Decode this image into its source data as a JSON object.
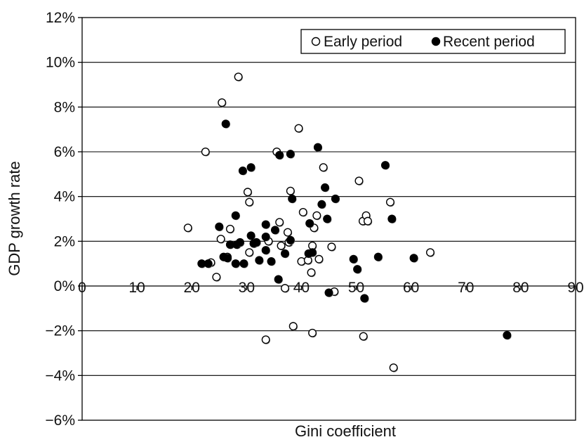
{
  "chart_data": {
    "type": "scatter",
    "title": "",
    "xlabel": "Gini coefficient",
    "ylabel": "GDP growth rate",
    "xlim": [
      0,
      90
    ],
    "ylim": [
      -6,
      12
    ],
    "x_ticks": [
      "0",
      "10",
      "20",
      "30",
      "40",
      "50",
      "60",
      "70",
      "80",
      "90"
    ],
    "y_ticks": [
      "−6%",
      "−4%",
      "−2%",
      "0%",
      "2%",
      "4%",
      "6%",
      "8%",
      "10%",
      "12%"
    ],
    "grid": "horizontal",
    "legend": "top-right",
    "series": [
      {
        "name": "Early period",
        "marker": "open-circle",
        "color": "#000000",
        "points": [
          [
            19.3,
            2.6
          ],
          [
            22.5,
            6.0
          ],
          [
            23.5,
            1.05
          ],
          [
            24.5,
            0.4
          ],
          [
            25.3,
            2.1
          ],
          [
            25.5,
            8.2
          ],
          [
            26.5,
            1.3
          ],
          [
            27.0,
            2.55
          ],
          [
            28.5,
            9.35
          ],
          [
            30.2,
            4.2
          ],
          [
            30.5,
            3.75
          ],
          [
            30.5,
            1.5
          ],
          [
            33.5,
            -2.4
          ],
          [
            34.0,
            2.0
          ],
          [
            35.5,
            6.0
          ],
          [
            36.0,
            2.85
          ],
          [
            36.3,
            1.8
          ],
          [
            37.0,
            -0.1
          ],
          [
            37.5,
            2.4
          ],
          [
            37.7,
            1.95
          ],
          [
            38.0,
            4.25
          ],
          [
            38.5,
            -1.8
          ],
          [
            39.5,
            7.05
          ],
          [
            40.0,
            1.1
          ],
          [
            40.3,
            3.3
          ],
          [
            41.2,
            1.15
          ],
          [
            41.8,
            0.6
          ],
          [
            42.0,
            -2.1
          ],
          [
            42.0,
            1.8
          ],
          [
            42.3,
            2.6
          ],
          [
            42.8,
            3.15
          ],
          [
            43.2,
            1.2
          ],
          [
            44.0,
            5.3
          ],
          [
            45.5,
            1.75
          ],
          [
            46.0,
            -0.25
          ],
          [
            50.5,
            4.7
          ],
          [
            51.3,
            -2.25
          ],
          [
            51.2,
            2.9
          ],
          [
            51.8,
            3.15
          ],
          [
            52.1,
            2.9
          ],
          [
            56.2,
            3.75
          ],
          [
            56.8,
            -3.65
          ],
          [
            63.5,
            1.5
          ]
        ]
      },
      {
        "name": "Recent period",
        "marker": "filled-circle",
        "color": "#000000",
        "points": [
          [
            21.8,
            1.0
          ],
          [
            23.0,
            1.0
          ],
          [
            25.0,
            2.65
          ],
          [
            25.8,
            1.3
          ],
          [
            26.2,
            7.25
          ],
          [
            26.5,
            1.25
          ],
          [
            27.0,
            1.85
          ],
          [
            28.0,
            3.15
          ],
          [
            28.0,
            1.0
          ],
          [
            28.2,
            1.85
          ],
          [
            28.8,
            1.95
          ],
          [
            29.3,
            5.15
          ],
          [
            29.5,
            1.0
          ],
          [
            30.8,
            5.3
          ],
          [
            30.8,
            2.25
          ],
          [
            31.3,
            1.9
          ],
          [
            31.8,
            1.95
          ],
          [
            32.3,
            1.15
          ],
          [
            33.5,
            2.75
          ],
          [
            33.5,
            2.2
          ],
          [
            33.5,
            1.6
          ],
          [
            34.5,
            1.1
          ],
          [
            35.2,
            2.5
          ],
          [
            35.8,
            0.3
          ],
          [
            36.0,
            5.85
          ],
          [
            37.0,
            1.45
          ],
          [
            38.0,
            5.9
          ],
          [
            38.0,
            2.05
          ],
          [
            38.3,
            3.9
          ],
          [
            41.3,
            1.45
          ],
          [
            41.5,
            2.8
          ],
          [
            42.0,
            1.5
          ],
          [
            43.0,
            6.2
          ],
          [
            43.7,
            3.65
          ],
          [
            44.3,
            4.4
          ],
          [
            44.7,
            3.0
          ],
          [
            45.0,
            -0.3
          ],
          [
            46.2,
            3.9
          ],
          [
            49.5,
            1.2
          ],
          [
            50.2,
            0.75
          ],
          [
            51.5,
            -0.55
          ],
          [
            54.0,
            1.3
          ],
          [
            55.3,
            5.4
          ],
          [
            56.5,
            3.0
          ],
          [
            60.5,
            1.25
          ],
          [
            77.5,
            -2.2
          ]
        ]
      }
    ]
  }
}
